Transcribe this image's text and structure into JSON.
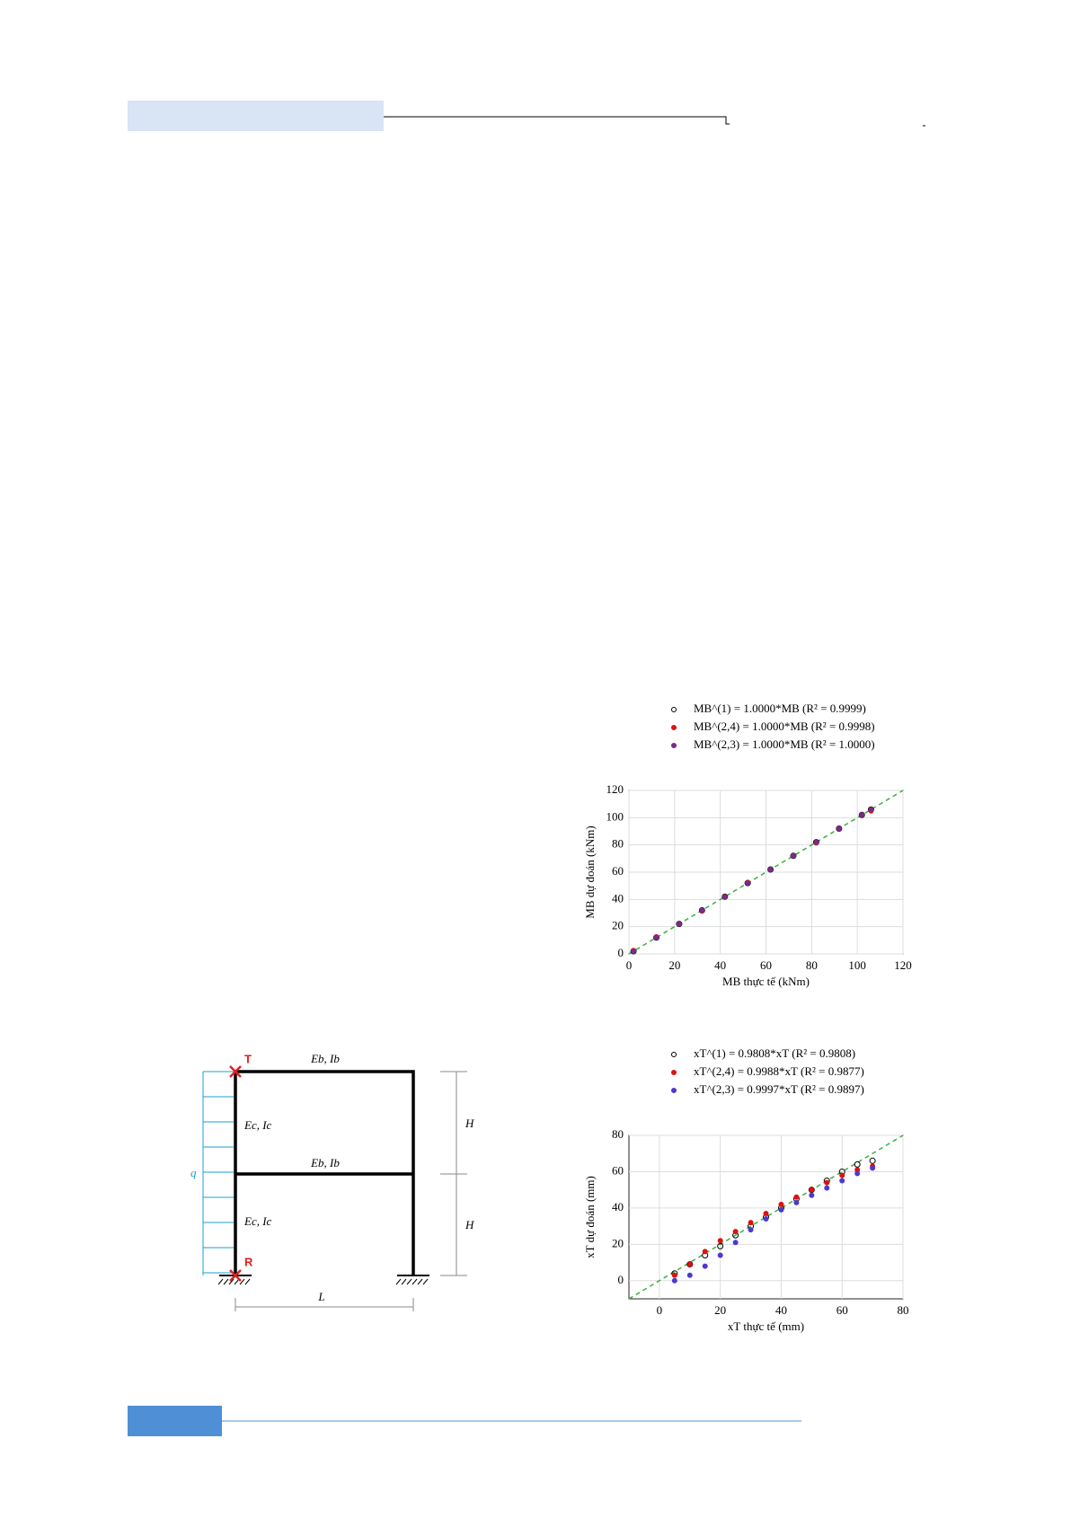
{
  "diagram": {
    "top_node": "T",
    "bottom_node": "R",
    "beam_top": "Eb, Ib",
    "column_upper": "Ec, Ic",
    "beam_mid": "Eb, Ib",
    "column_lower": "Ec, Ic",
    "load": "q",
    "height_upper": "H",
    "height_lower": "H",
    "span": "L"
  },
  "chart_data": [
    {
      "type": "scatter",
      "xlabel": "MB thực tế (kNm)",
      "ylabel": "MB dự đoán (kNm)",
      "x": [
        2,
        12,
        22,
        32,
        42,
        52,
        62,
        72,
        82,
        92,
        102,
        106
      ],
      "series": [
        {
          "name": "MB^(1) = 1.0000*MB (R² = 0.9999)",
          "color": "#000000",
          "values": [
            2,
            12,
            22,
            32,
            42,
            52,
            62,
            72,
            82,
            92,
            102,
            106
          ]
        },
        {
          "name": "MB^(2,4) = 1.0000*MB (R² = 0.9998)",
          "color": "#e01010",
          "values": [
            2.5,
            12.5,
            22,
            31.5,
            42,
            52.5,
            62,
            72,
            81.5,
            92,
            102,
            105
          ]
        },
        {
          "name": "MB^(2,3) = 1.0000*MB (R² = 1.0000)",
          "color": "#7a2a8a",
          "values": [
            2,
            12,
            22,
            32,
            42,
            52,
            62,
            72,
            82,
            92,
            102,
            106
          ]
        }
      ],
      "xlim": [
        0,
        120
      ],
      "ylim": [
        0,
        120
      ],
      "xticks": [
        0,
        20,
        40,
        60,
        80,
        100,
        120
      ],
      "yticks": [
        0,
        20,
        40,
        60,
        80,
        100,
        120
      ],
      "grid": true
    },
    {
      "type": "scatter",
      "xlabel": "xT thực tế (mm)",
      "ylabel": "xT dự đoán (mm)",
      "x": [
        5,
        10,
        15,
        20,
        25,
        30,
        35,
        40,
        45,
        50,
        55,
        60,
        65,
        70
      ],
      "series": [
        {
          "name": "xT^(1) = 0.9808*xT (R² = 0.9808)",
          "color": "#000000",
          "values": [
            4,
            9,
            14,
            19,
            25,
            30,
            35,
            40,
            45,
            50,
            55,
            60,
            64,
            66
          ]
        },
        {
          "name": "xT^(2,4) = 0.9988*xT (R² = 0.9877)",
          "color": "#e01010",
          "values": [
            3,
            9,
            16,
            22,
            27,
            32,
            37,
            42,
            46,
            50,
            54,
            58,
            61,
            63
          ]
        },
        {
          "name": "xT^(2,3) = 0.9997*xT (R² = 0.9897)",
          "color": "#4a3ad0",
          "values": [
            0,
            3,
            8,
            14,
            21,
            28,
            34,
            39,
            43,
            47,
            51,
            55,
            59,
            62
          ]
        }
      ],
      "xlim": [
        -10,
        80
      ],
      "ylim": [
        -10,
        80
      ],
      "xticks": [
        0,
        20,
        40,
        60,
        80
      ],
      "yticks": [
        0,
        20,
        40,
        60,
        80
      ],
      "grid": true
    }
  ]
}
